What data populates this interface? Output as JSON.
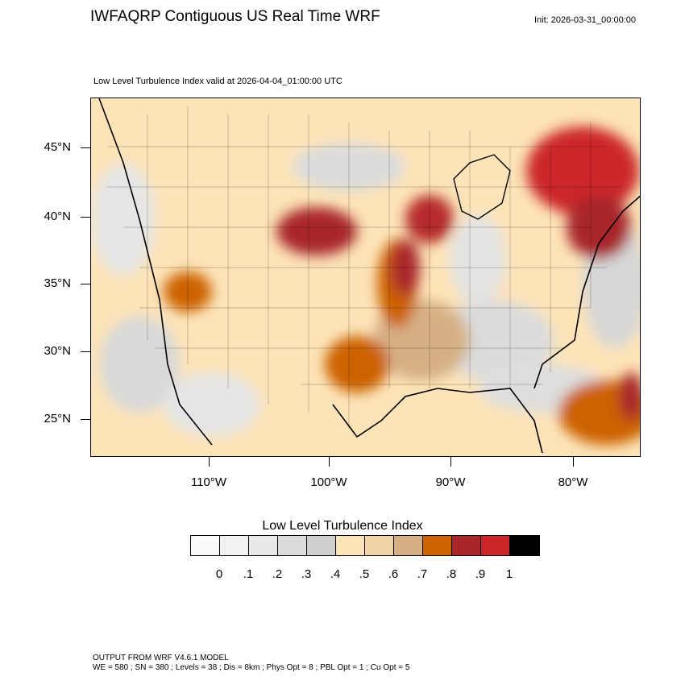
{
  "header": {
    "title": "IWFAQRP Contiguous US Real Time WRF",
    "init": "Init: 2026-03-31_00:00:00"
  },
  "map": {
    "subtitle": "Low Level Turbulence Index valid at 2026-04-04_01:00:00 UTC",
    "lat_labels": [
      "45°N",
      "40°N",
      "35°N",
      "30°N",
      "25°N"
    ],
    "lon_labels": [
      "110°W",
      "100°W",
      "90°W",
      "80°W"
    ]
  },
  "legend": {
    "title": "Low Level Turbulence Index",
    "labels": [
      "0",
      ".1",
      ".2",
      ".3",
      ".4",
      ".5",
      ".6",
      ".7",
      ".8",
      ".9",
      "1"
    ],
    "colors": [
      "#fafafa",
      "#f2f2f2",
      "#e9e9e9",
      "#dcdcdc",
      "#cfcfcf",
      "#fde4b8",
      "#f1d3a6",
      "#d5b084",
      "#cc6200",
      "#a8282a",
      "#cc2529",
      "#000000"
    ]
  },
  "footer": {
    "line1": "OUTPUT FROM WRF V4.6.1 MODEL",
    "line2": "WE = 580 ; SN = 380 ; Levels = 38 ; Dis = 8km ; Phys Opt = 8 ; PBL Opt = 1 ; Cu Opt = 5"
  }
}
